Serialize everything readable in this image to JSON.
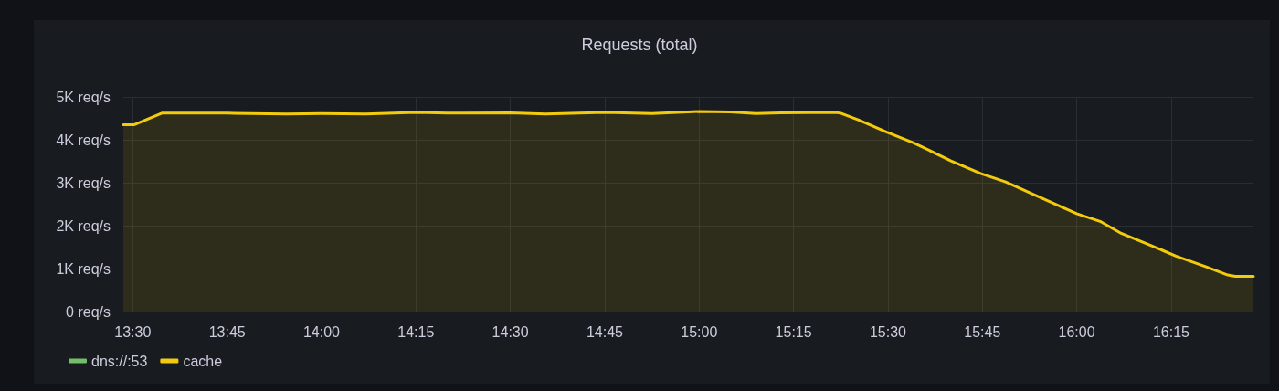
{
  "chart_data": {
    "type": "area",
    "title": "Requests (total)",
    "x": [
      13.475,
      13.503,
      13.577,
      13.75,
      13.907,
      14.0,
      14.117,
      14.25,
      14.333,
      14.5,
      14.593,
      14.75,
      14.875,
      15.0,
      15.083,
      15.15,
      15.217,
      15.36,
      15.375,
      15.423,
      15.497,
      15.568,
      15.667,
      15.747,
      15.812,
      15.875,
      16.0,
      16.062,
      16.118,
      16.215,
      16.263,
      16.343,
      16.4,
      16.42,
      16.468
    ],
    "series": [
      {
        "name": "dns://:53",
        "color": "#73bf69",
        "values": [
          null,
          null,
          null,
          null,
          null,
          null,
          null,
          null,
          null,
          null,
          null,
          null,
          null,
          null,
          null,
          null,
          null,
          null,
          null,
          null,
          null,
          null,
          null,
          null,
          null,
          null,
          null,
          null,
          null,
          null,
          null,
          null,
          null,
          null,
          null
        ]
      },
      {
        "name": "cache",
        "color": "#f2cc0c",
        "values": [
          4350,
          4350,
          4620,
          4620,
          4600,
          4610,
          4600,
          4640,
          4620,
          4630,
          4600,
          4640,
          4610,
          4660,
          4650,
          4610,
          4630,
          4640,
          4620,
          4460,
          4180,
          3930,
          3510,
          3210,
          3020,
          2770,
          2280,
          2100,
          1820,
          1470,
          1290,
          1040,
          850,
          820,
          820
        ]
      }
    ],
    "xlim": [
      13.475,
      16.468
    ],
    "xticks": [
      {
        "value": 13.5,
        "label": "13:30"
      },
      {
        "value": 13.75,
        "label": "13:45"
      },
      {
        "value": 14,
        "label": "14:00"
      },
      {
        "value": 14.25,
        "label": "14:15"
      },
      {
        "value": 14.5,
        "label": "14:30"
      },
      {
        "value": 14.75,
        "label": "14:45"
      },
      {
        "value": 15,
        "label": "15:00"
      },
      {
        "value": 15.25,
        "label": "15:15"
      },
      {
        "value": 15.5,
        "label": "15:30"
      },
      {
        "value": 15.75,
        "label": "15:45"
      },
      {
        "value": 16,
        "label": "16:00"
      },
      {
        "value": 16.25,
        "label": "16:15"
      }
    ],
    "ylim": [
      0,
      5000
    ],
    "yticks": [
      {
        "value": 0,
        "label": "0 req/s"
      },
      {
        "value": 1000,
        "label": "1K req/s"
      },
      {
        "value": 2000,
        "label": "2K req/s"
      },
      {
        "value": 3000,
        "label": "3K req/s"
      },
      {
        "value": 4000,
        "label": "4K req/s"
      },
      {
        "value": 5000,
        "label": "5K req/s"
      }
    ],
    "grid": true,
    "legend": "bottom left",
    "marker": "none",
    "line_style": "solid"
  }
}
